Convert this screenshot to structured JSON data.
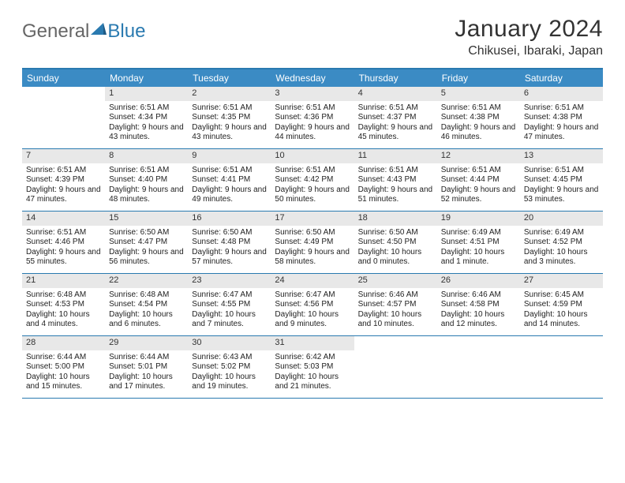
{
  "logo": {
    "word1": "General",
    "word2": "Blue"
  },
  "title": "January 2024",
  "location": "Chikusei, Ibaraki, Japan",
  "colors": {
    "header_bg": "#3b8bc4",
    "border": "#2a7ab0",
    "daynum_bg": "#e8e8e8",
    "page_bg": "#ffffff"
  },
  "day_labels": [
    "Sunday",
    "Monday",
    "Tuesday",
    "Wednesday",
    "Thursday",
    "Friday",
    "Saturday"
  ],
  "weeks": [
    [
      {
        "n": "",
        "sr": "",
        "ss": "",
        "dl": ""
      },
      {
        "n": "1",
        "sr": "Sunrise: 6:51 AM",
        "ss": "Sunset: 4:34 PM",
        "dl": "Daylight: 9 hours and 43 minutes."
      },
      {
        "n": "2",
        "sr": "Sunrise: 6:51 AM",
        "ss": "Sunset: 4:35 PM",
        "dl": "Daylight: 9 hours and 43 minutes."
      },
      {
        "n": "3",
        "sr": "Sunrise: 6:51 AM",
        "ss": "Sunset: 4:36 PM",
        "dl": "Daylight: 9 hours and 44 minutes."
      },
      {
        "n": "4",
        "sr": "Sunrise: 6:51 AM",
        "ss": "Sunset: 4:37 PM",
        "dl": "Daylight: 9 hours and 45 minutes."
      },
      {
        "n": "5",
        "sr": "Sunrise: 6:51 AM",
        "ss": "Sunset: 4:38 PM",
        "dl": "Daylight: 9 hours and 46 minutes."
      },
      {
        "n": "6",
        "sr": "Sunrise: 6:51 AM",
        "ss": "Sunset: 4:38 PM",
        "dl": "Daylight: 9 hours and 47 minutes."
      }
    ],
    [
      {
        "n": "7",
        "sr": "Sunrise: 6:51 AM",
        "ss": "Sunset: 4:39 PM",
        "dl": "Daylight: 9 hours and 47 minutes."
      },
      {
        "n": "8",
        "sr": "Sunrise: 6:51 AM",
        "ss": "Sunset: 4:40 PM",
        "dl": "Daylight: 9 hours and 48 minutes."
      },
      {
        "n": "9",
        "sr": "Sunrise: 6:51 AM",
        "ss": "Sunset: 4:41 PM",
        "dl": "Daylight: 9 hours and 49 minutes."
      },
      {
        "n": "10",
        "sr": "Sunrise: 6:51 AM",
        "ss": "Sunset: 4:42 PM",
        "dl": "Daylight: 9 hours and 50 minutes."
      },
      {
        "n": "11",
        "sr": "Sunrise: 6:51 AM",
        "ss": "Sunset: 4:43 PM",
        "dl": "Daylight: 9 hours and 51 minutes."
      },
      {
        "n": "12",
        "sr": "Sunrise: 6:51 AM",
        "ss": "Sunset: 4:44 PM",
        "dl": "Daylight: 9 hours and 52 minutes."
      },
      {
        "n": "13",
        "sr": "Sunrise: 6:51 AM",
        "ss": "Sunset: 4:45 PM",
        "dl": "Daylight: 9 hours and 53 minutes."
      }
    ],
    [
      {
        "n": "14",
        "sr": "Sunrise: 6:51 AM",
        "ss": "Sunset: 4:46 PM",
        "dl": "Daylight: 9 hours and 55 minutes."
      },
      {
        "n": "15",
        "sr": "Sunrise: 6:50 AM",
        "ss": "Sunset: 4:47 PM",
        "dl": "Daylight: 9 hours and 56 minutes."
      },
      {
        "n": "16",
        "sr": "Sunrise: 6:50 AM",
        "ss": "Sunset: 4:48 PM",
        "dl": "Daylight: 9 hours and 57 minutes."
      },
      {
        "n": "17",
        "sr": "Sunrise: 6:50 AM",
        "ss": "Sunset: 4:49 PM",
        "dl": "Daylight: 9 hours and 58 minutes."
      },
      {
        "n": "18",
        "sr": "Sunrise: 6:50 AM",
        "ss": "Sunset: 4:50 PM",
        "dl": "Daylight: 10 hours and 0 minutes."
      },
      {
        "n": "19",
        "sr": "Sunrise: 6:49 AM",
        "ss": "Sunset: 4:51 PM",
        "dl": "Daylight: 10 hours and 1 minute."
      },
      {
        "n": "20",
        "sr": "Sunrise: 6:49 AM",
        "ss": "Sunset: 4:52 PM",
        "dl": "Daylight: 10 hours and 3 minutes."
      }
    ],
    [
      {
        "n": "21",
        "sr": "Sunrise: 6:48 AM",
        "ss": "Sunset: 4:53 PM",
        "dl": "Daylight: 10 hours and 4 minutes."
      },
      {
        "n": "22",
        "sr": "Sunrise: 6:48 AM",
        "ss": "Sunset: 4:54 PM",
        "dl": "Daylight: 10 hours and 6 minutes."
      },
      {
        "n": "23",
        "sr": "Sunrise: 6:47 AM",
        "ss": "Sunset: 4:55 PM",
        "dl": "Daylight: 10 hours and 7 minutes."
      },
      {
        "n": "24",
        "sr": "Sunrise: 6:47 AM",
        "ss": "Sunset: 4:56 PM",
        "dl": "Daylight: 10 hours and 9 minutes."
      },
      {
        "n": "25",
        "sr": "Sunrise: 6:46 AM",
        "ss": "Sunset: 4:57 PM",
        "dl": "Daylight: 10 hours and 10 minutes."
      },
      {
        "n": "26",
        "sr": "Sunrise: 6:46 AM",
        "ss": "Sunset: 4:58 PM",
        "dl": "Daylight: 10 hours and 12 minutes."
      },
      {
        "n": "27",
        "sr": "Sunrise: 6:45 AM",
        "ss": "Sunset: 4:59 PM",
        "dl": "Daylight: 10 hours and 14 minutes."
      }
    ],
    [
      {
        "n": "28",
        "sr": "Sunrise: 6:44 AM",
        "ss": "Sunset: 5:00 PM",
        "dl": "Daylight: 10 hours and 15 minutes."
      },
      {
        "n": "29",
        "sr": "Sunrise: 6:44 AM",
        "ss": "Sunset: 5:01 PM",
        "dl": "Daylight: 10 hours and 17 minutes."
      },
      {
        "n": "30",
        "sr": "Sunrise: 6:43 AM",
        "ss": "Sunset: 5:02 PM",
        "dl": "Daylight: 10 hours and 19 minutes."
      },
      {
        "n": "31",
        "sr": "Sunrise: 6:42 AM",
        "ss": "Sunset: 5:03 PM",
        "dl": "Daylight: 10 hours and 21 minutes."
      },
      {
        "n": "",
        "sr": "",
        "ss": "",
        "dl": ""
      },
      {
        "n": "",
        "sr": "",
        "ss": "",
        "dl": ""
      },
      {
        "n": "",
        "sr": "",
        "ss": "",
        "dl": ""
      }
    ]
  ]
}
